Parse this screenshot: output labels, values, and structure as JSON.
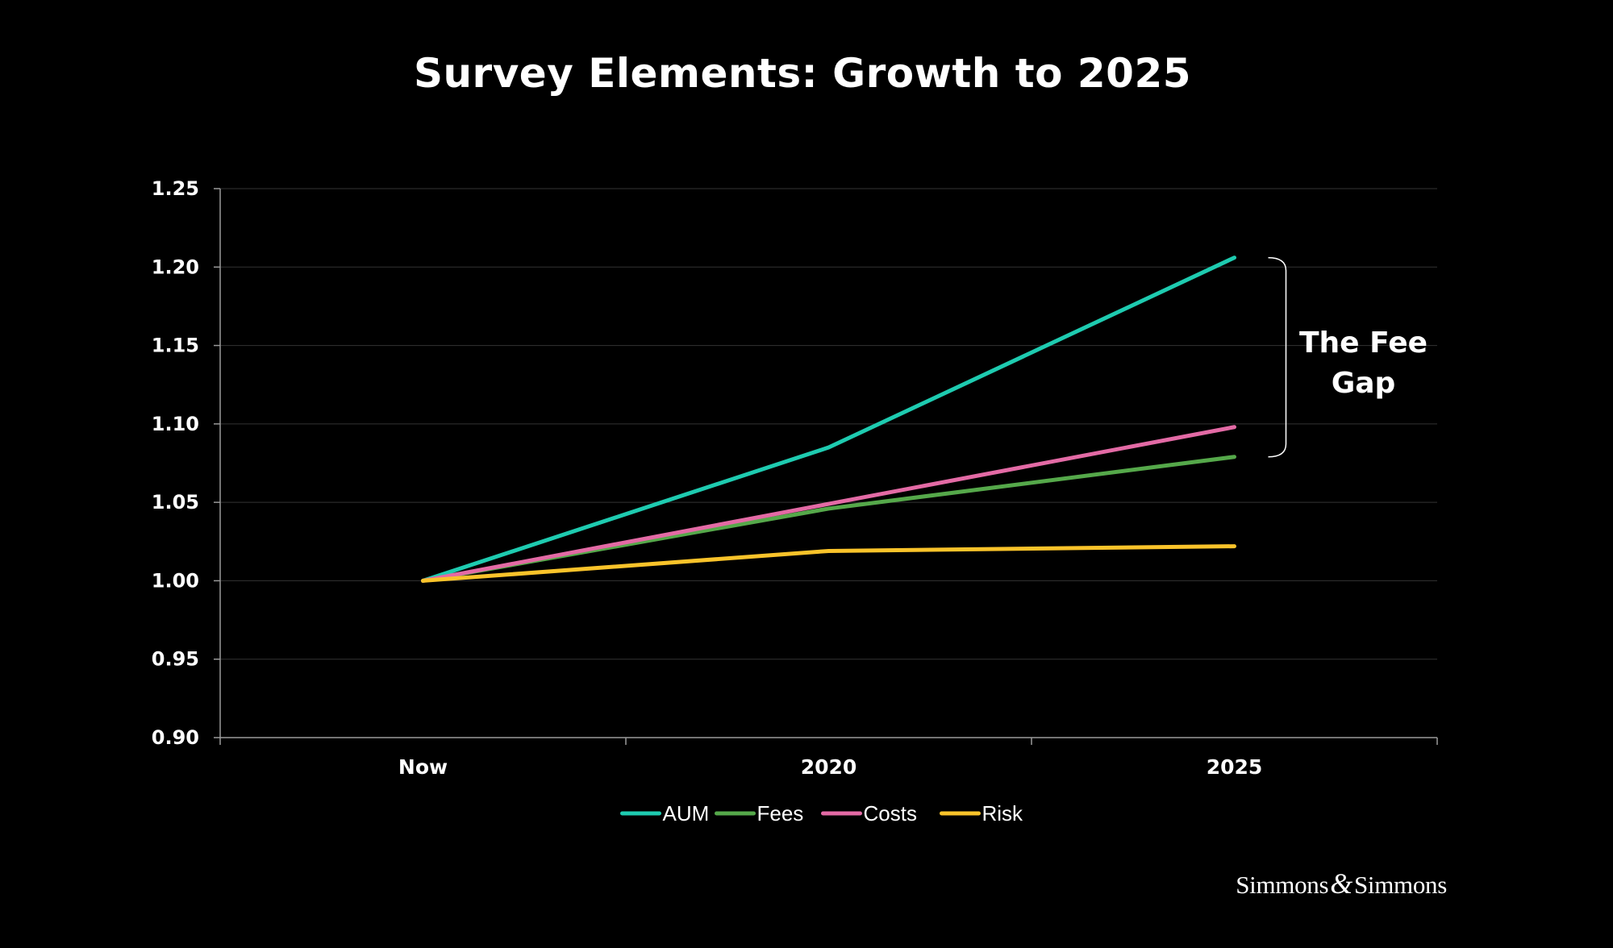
{
  "chart_data": {
    "type": "line",
    "title": "Survey Elements: Growth to 2025",
    "categories": [
      "Now",
      "2020",
      "2025"
    ],
    "ylim": [
      0.9,
      1.25
    ],
    "yticks": [
      "0.90",
      "0.95",
      "1.00",
      "1.05",
      "1.10",
      "1.15",
      "1.20",
      "1.25"
    ],
    "grid": true,
    "legend_position": "bottom-center",
    "series": [
      {
        "name": "AUM",
        "color": "#1ecbb0",
        "values": [
          1.0,
          1.085,
          1.206
        ]
      },
      {
        "name": "Fees",
        "color": "#55a84a",
        "values": [
          1.0,
          1.046,
          1.079
        ]
      },
      {
        "name": "Costs",
        "color": "#e36aa5",
        "values": [
          1.0,
          1.049,
          1.098
        ]
      },
      {
        "name": "Risk",
        "color": "#f9c32a",
        "values": [
          1.0,
          1.019,
          1.022
        ]
      }
    ],
    "annotation": {
      "line1": "The Fee",
      "line2": "Gap",
      "from": 1.079,
      "to": 1.206
    }
  },
  "branding": {
    "logo_text": "Simmons & Simmons",
    "part1": "Simmons",
    "ampersand": "&",
    "part2": "Simmons"
  }
}
